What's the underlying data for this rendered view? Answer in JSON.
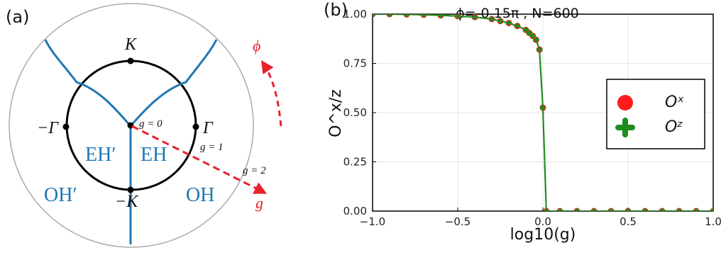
{
  "panel_a": {
    "tag": "(a)",
    "labels": {
      "K_top": "K",
      "K_bottom": "−K",
      "gamma_right": "Γ",
      "gamma_left": "−Γ",
      "g0": "g = 0",
      "g1": "g = 1",
      "g2": "g = 2",
      "g_arrow": "g",
      "phi_arrow": "ϕ"
    },
    "regions": {
      "eh_prime": "EH′",
      "eh": "EH",
      "oh_prime": "OH′",
      "oh": "OH"
    },
    "colors": {
      "boundary": "#1f77b4",
      "arrow": "#e8212b",
      "circle": "#000000",
      "outer": "#aaaaaa"
    }
  },
  "panel_b": {
    "tag": "(b)",
    "chart_data": {
      "type": "scatter",
      "title": "ϕ=-0.15π , N=600",
      "xlabel": "log10(g)",
      "ylabel": "O^x/z",
      "xlim": [
        -1.0,
        1.0
      ],
      "ylim": [
        0.0,
        1.0
      ],
      "x_ticks": [
        "−1.0",
        "−0.5",
        "0.0",
        "0.5",
        "1.0"
      ],
      "y_ticks": [
        "0.00",
        "0.25",
        "0.50",
        "0.75",
        "1.00"
      ],
      "grid": true,
      "legend_position": "right",
      "series": [
        {
          "name": "O^x",
          "color": "#ff1c1c",
          "marker": "circle",
          "x": [
            -1.0,
            -0.9,
            -0.8,
            -0.7,
            -0.6,
            -0.5,
            -0.4,
            -0.3,
            -0.25,
            -0.2,
            -0.15,
            -0.1,
            -0.08,
            -0.06,
            -0.04,
            -0.02,
            0.0,
            0.02,
            0.1,
            0.2,
            0.3,
            0.4,
            0.5,
            0.6,
            0.7,
            0.8,
            0.9,
            1.0
          ],
          "y": [
            1.0,
            1.0,
            0.999,
            0.997,
            0.994,
            0.99,
            0.985,
            0.975,
            0.965,
            0.955,
            0.94,
            0.92,
            0.905,
            0.89,
            0.87,
            0.82,
            0.525,
            0.0,
            0.0,
            0.0,
            0.0,
            0.0,
            0.0,
            0.0,
            0.0,
            0.0,
            0.0,
            0.0
          ]
        },
        {
          "name": "O^z",
          "color": "#1f8c1f",
          "marker": "cross",
          "x": [
            -1.0,
            -0.9,
            -0.8,
            -0.7,
            -0.6,
            -0.5,
            -0.4,
            -0.3,
            -0.25,
            -0.2,
            -0.15,
            -0.1,
            -0.08,
            -0.06,
            -0.04,
            -0.02,
            0.0,
            0.02,
            0.1,
            0.2,
            0.3,
            0.4,
            0.5,
            0.6,
            0.7,
            0.8,
            0.9,
            1.0
          ],
          "y": [
            1.0,
            1.0,
            0.999,
            0.997,
            0.994,
            0.99,
            0.985,
            0.975,
            0.965,
            0.955,
            0.94,
            0.92,
            0.905,
            0.89,
            0.87,
            0.82,
            0.525,
            0.0,
            0.0,
            0.0,
            0.0,
            0.0,
            0.0,
            0.0,
            0.0,
            0.0,
            0.0,
            0.0
          ]
        }
      ],
      "legend": [
        "Oˣ",
        "Oᶻ"
      ]
    }
  }
}
